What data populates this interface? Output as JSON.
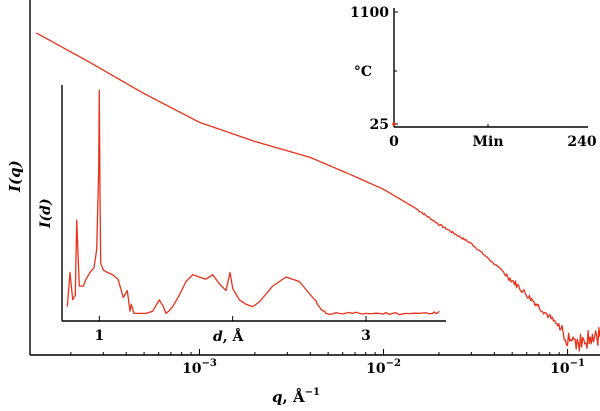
{
  "chart_data": [
    {
      "id": "main",
      "type": "line",
      "scale": {
        "x": "log",
        "y": "log"
      },
      "xlabel": {
        "prefix": "q",
        "suffix": ", Å",
        "sup": "−1"
      },
      "ylabel": {
        "main": "I",
        "paren": "(q)"
      },
      "xlim": [
        0.00012,
        0.15
      ],
      "xticks": [
        {
          "base": "10",
          "exp": "−3",
          "value": 0.001
        },
        {
          "base": "10",
          "exp": "−2",
          "value": 0.01
        },
        {
          "base": "10",
          "exp": "−1",
          "value": 0.1
        }
      ],
      "series": [
        {
          "color": "#e8311a",
          "x": [
            0.00013,
            0.00025,
            0.0005,
            0.001,
            0.002,
            0.004,
            0.007,
            0.01,
            0.015,
            0.02,
            0.03,
            0.045,
            0.06,
            0.08,
            0.1,
            0.12,
            0.15
          ],
          "y_rel": [
            1.0,
            0.91,
            0.81,
            0.72,
            0.66,
            0.61,
            0.55,
            0.51,
            0.45,
            0.4,
            0.34,
            0.25,
            0.18,
            0.11,
            0.05,
            0.03,
            0.05
          ]
        }
      ]
    },
    {
      "id": "inset_xrd",
      "type": "line",
      "xlabel": {
        "prefix": "d",
        "suffix": ", Å"
      },
      "ylabel": {
        "main": "I",
        "paren": "(d)"
      },
      "xlim": [
        0.72,
        3.6
      ],
      "xticks": [
        {
          "label": "1",
          "value": 1
        },
        {
          "label": "3",
          "value": 3
        }
      ],
      "series": [
        {
          "color": "#e8311a",
          "x": [
            0.76,
            0.78,
            0.8,
            0.82,
            0.83,
            0.85,
            0.88,
            0.9,
            0.93,
            0.96,
            0.98,
            0.995,
            1.0,
            1.005,
            1.01,
            1.03,
            1.06,
            1.1,
            1.14,
            1.18,
            1.21,
            1.23,
            1.24,
            1.26,
            1.3,
            1.35,
            1.4,
            1.45,
            1.48,
            1.5,
            1.52,
            1.55,
            1.6,
            1.65,
            1.7,
            1.75,
            1.8,
            1.85,
            1.9,
            1.95,
            1.98,
            2.0,
            2.02,
            2.05,
            2.1,
            2.15,
            2.2,
            2.3,
            2.4,
            2.5,
            2.6,
            2.65,
            2.7,
            2.8,
            2.9,
            3.0,
            3.1,
            3.2,
            3.3,
            3.4,
            3.5,
            3.55
          ],
          "y_rel": [
            0.05,
            0.2,
            0.08,
            0.1,
            0.43,
            0.14,
            0.14,
            0.17,
            0.2,
            0.22,
            0.3,
            0.65,
            1.0,
            0.55,
            0.24,
            0.21,
            0.2,
            0.19,
            0.17,
            0.09,
            0.12,
            0.03,
            0.06,
            0.02,
            0.02,
            0.02,
            0.03,
            0.08,
            0.05,
            0.02,
            0.03,
            0.05,
            0.1,
            0.16,
            0.19,
            0.18,
            0.17,
            0.19,
            0.15,
            0.12,
            0.2,
            0.13,
            0.11,
            0.08,
            0.06,
            0.05,
            0.07,
            0.14,
            0.18,
            0.16,
            0.09,
            0.05,
            0.02,
            0.02,
            0.02,
            0.02,
            0.02,
            0.02,
            0.02,
            0.02,
            0.02,
            0.03
          ]
        }
      ]
    },
    {
      "id": "inset_temperature",
      "type": "line",
      "xlabel": "Min",
      "ylabel": "°C",
      "xlim": [
        0,
        240
      ],
      "ylim": [
        25,
        1100
      ],
      "xticks": [
        {
          "label": "0",
          "value": 0
        },
        {
          "label": "240",
          "value": 240
        }
      ],
      "yticks": [
        {
          "label": "25",
          "value": 25
        },
        {
          "label": "1100",
          "value": 1100
        }
      ],
      "series": [
        {
          "color": "#e8311a",
          "x": [
            0,
            1
          ],
          "y": [
            25,
            25
          ]
        }
      ]
    }
  ]
}
